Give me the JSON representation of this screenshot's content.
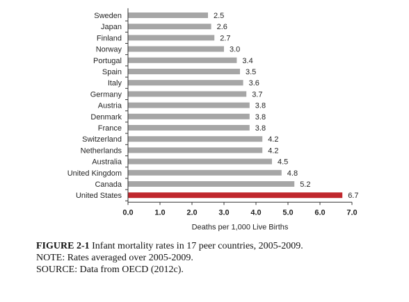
{
  "chart_data": {
    "type": "bar",
    "orientation": "horizontal",
    "categories": [
      "Sweden",
      "Japan",
      "Finland",
      "Norway",
      "Portugal",
      "Spain",
      "Italy",
      "Germany",
      "Austria",
      "Denmark",
      "France",
      "Switzerland",
      "Netherlands",
      "Australia",
      "United Kingdom",
      "Canada",
      "United States"
    ],
    "values": [
      2.5,
      2.6,
      2.7,
      3.0,
      3.4,
      3.5,
      3.6,
      3.7,
      3.8,
      3.8,
      3.8,
      4.2,
      4.2,
      4.5,
      4.8,
      5.2,
      6.7
    ],
    "value_labels": [
      "2.5",
      "2.6",
      "2.7",
      "3.0",
      "3.4",
      "3.5",
      "3.6",
      "3.7",
      "3.8",
      "3.8",
      "3.8",
      "4.2",
      "4.2",
      "4.5",
      "4.8",
      "5.2",
      "6.7"
    ],
    "xlabel": "Deaths per 1,000 Live Births",
    "xlim": [
      0,
      7
    ],
    "xticks": [
      "0.0",
      "1.0",
      "2.0",
      "3.0",
      "4.0",
      "5.0",
      "6.0",
      "7.0"
    ],
    "colors": {
      "bar": "#a6a6a6",
      "highlight": "#c0272d",
      "axis": "#333333"
    },
    "highlight_category": "United States",
    "grid": false
  },
  "caption": {
    "figure_label": "FIGURE 2-1",
    "figure_text": "Infant mortality rates in 17 peer countries, 2005-2009.",
    "note": "NOTE: Rates averaged over 2005-2009.",
    "source": "SOURCE: Data from OECD (2012c)."
  }
}
